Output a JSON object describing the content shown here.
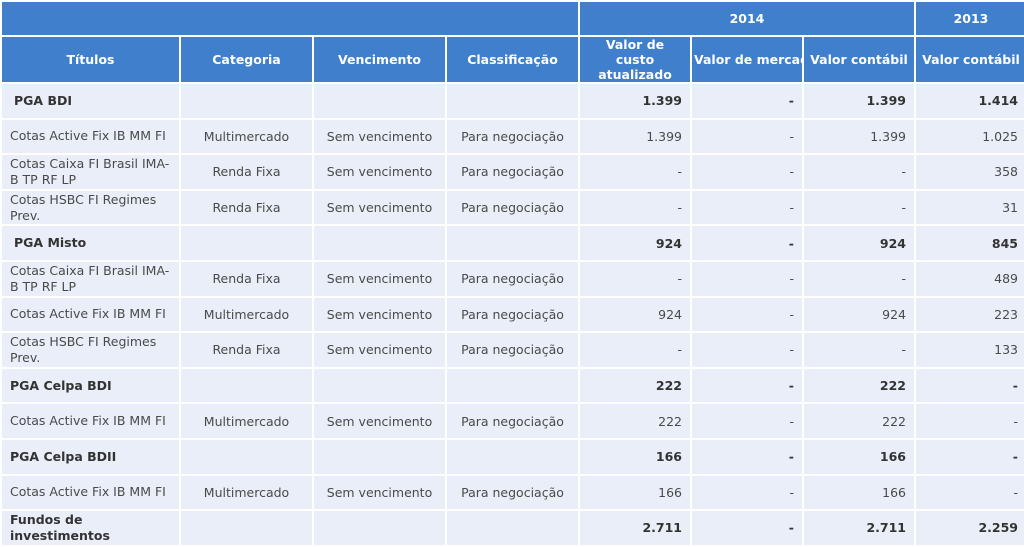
{
  "header": {
    "year_2014": "2014",
    "year_2013": "2013",
    "columns": {
      "titulos": "Títulos",
      "categoria": "Categoria",
      "vencimento": "Vencimento",
      "classificacao": "Classificação",
      "custo": "Valor de custo atualizado",
      "mercado": "Valor de mercado",
      "contabil_2014": "Valor contábil",
      "contabil_2013": "Valor contábil"
    }
  },
  "rows": [
    {
      "type": "group",
      "titulo": "PGA BDI",
      "categoria": "",
      "vencimento": "",
      "classificacao": "",
      "custo": "1.399",
      "mercado": "-",
      "contabil_2014": "1.399",
      "contabil_2013": "1.414"
    },
    {
      "type": "item",
      "titulo": "Cotas Active Fix IB MM FI",
      "categoria": "Multimercado",
      "vencimento": "Sem vencimento",
      "classificacao": "Para negociação",
      "custo": "1.399",
      "mercado": "-",
      "contabil_2014": "1.399",
      "contabil_2013": "1.025"
    },
    {
      "type": "item",
      "titulo": "Cotas Caixa FI Brasil IMA-B TP RF LP",
      "categoria": "Renda Fixa",
      "vencimento": "Sem vencimento",
      "classificacao": "Para negociação",
      "custo": "-",
      "mercado": "-",
      "contabil_2014": "-",
      "contabil_2013": "358"
    },
    {
      "type": "item",
      "titulo": "Cotas HSBC FI Regimes Prev.",
      "categoria": "Renda Fixa",
      "vencimento": "Sem vencimento",
      "classificacao": "Para negociação",
      "custo": "-",
      "mercado": "-",
      "contabil_2014": "-",
      "contabil_2013": "31"
    },
    {
      "type": "group",
      "titulo": "PGA Misto",
      "categoria": "",
      "vencimento": "",
      "classificacao": "",
      "custo": "924",
      "mercado": "-",
      "contabil_2014": "924",
      "contabil_2013": "845"
    },
    {
      "type": "item",
      "titulo": "Cotas Caixa FI Brasil IMA-B TP RF LP",
      "categoria": "Renda Fixa",
      "vencimento": "Sem vencimento",
      "classificacao": "Para negociação",
      "custo": "-",
      "mercado": "-",
      "contabil_2014": "-",
      "contabil_2013": "489"
    },
    {
      "type": "item",
      "titulo": "Cotas Active Fix IB MM FI",
      "categoria": "Multimercado",
      "vencimento": "Sem vencimento",
      "classificacao": "Para negociação",
      "custo": "924",
      "mercado": "-",
      "contabil_2014": "924",
      "contabil_2013": "223"
    },
    {
      "type": "item",
      "titulo": "Cotas HSBC FI Regimes Prev.",
      "categoria": "Renda Fixa",
      "vencimento": "Sem vencimento",
      "classificacao": "Para negociação",
      "custo": "-",
      "mercado": "-",
      "contabil_2014": "-",
      "contabil_2013": "133"
    },
    {
      "type": "group",
      "titulo": "PGA Celpa BDI",
      "categoria": "",
      "vencimento": "",
      "classificacao": "",
      "custo": "222",
      "mercado": "-",
      "contabil_2014": "222",
      "contabil_2013": "-"
    },
    {
      "type": "item",
      "titulo": "Cotas Active Fix IB MM FI",
      "categoria": "Multimercado",
      "vencimento": "Sem vencimento",
      "classificacao": "Para negociação",
      "custo": "222",
      "mercado": "-",
      "contabil_2014": "222",
      "contabil_2013": "-"
    },
    {
      "type": "group",
      "titulo": "PGA Celpa BDII",
      "categoria": "",
      "vencimento": "",
      "classificacao": "",
      "custo": "166",
      "mercado": "-",
      "contabil_2014": "166",
      "contabil_2013": "-"
    },
    {
      "type": "item",
      "titulo": "Cotas Active Fix IB MM FI",
      "categoria": "Multimercado",
      "vencimento": "Sem vencimento",
      "classificacao": "Para negociação",
      "custo": "166",
      "mercado": "-",
      "contabil_2014": "166",
      "contabil_2013": "-"
    },
    {
      "type": "group",
      "titulo": "Fundos de investimentos",
      "categoria": "",
      "vencimento": "",
      "classificacao": "",
      "custo": "2.711",
      "mercado": "-",
      "contabil_2014": "2.711",
      "contabil_2013": "2.259"
    }
  ]
}
